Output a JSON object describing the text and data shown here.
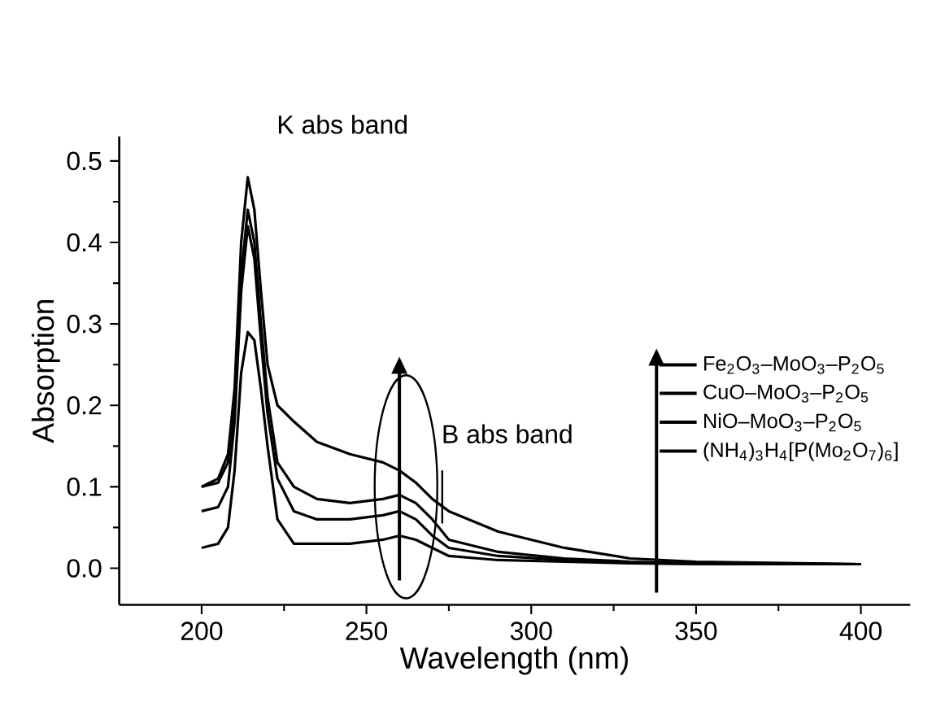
{
  "chart_data": {
    "type": "line",
    "xlabel": "Wavelength (nm)",
    "ylabel": "Absorption",
    "xlim": [
      175,
      415
    ],
    "ylim": [
      -0.045,
      0.53
    ],
    "xticks": [
      200,
      250,
      300,
      350,
      400
    ],
    "yticks": [
      {
        "value": 0,
        "label": "0.0"
      },
      {
        "value": 0.1,
        "label": "0.1"
      },
      {
        "value": 0.2,
        "label": "0.2"
      },
      {
        "value": 0.3,
        "label": "0.3"
      },
      {
        "value": 0.4,
        "label": "0.4"
      },
      {
        "value": 0.5,
        "label": "0.5"
      }
    ],
    "legend": "right",
    "grid": false,
    "marker": "none",
    "line_style": "solid",
    "annotations": [
      "K abs band",
      "B abs band"
    ],
    "x": [
      200,
      205,
      208,
      210,
      212,
      214,
      216,
      218,
      220,
      223,
      228,
      235,
      245,
      255,
      260,
      265,
      270,
      275,
      290,
      310,
      330,
      350,
      400
    ],
    "series": [
      {
        "name": "Fe$_{2}$O$_{3}$–MoO$_{3}$–P$_{2}$O$_{5}$",
        "color": "#000000",
        "values": [
          0.1,
          0.11,
          0.14,
          0.22,
          0.4,
          0.48,
          0.44,
          0.34,
          0.25,
          0.2,
          0.18,
          0.155,
          0.14,
          0.13,
          0.12,
          0.105,
          0.085,
          0.07,
          0.045,
          0.025,
          0.012,
          0.008,
          0.005
        ]
      },
      {
        "name": "CuO–MoO$_{3}$–P$_{2}$O$_{5}$",
        "color": "#000000",
        "values": [
          0.1,
          0.105,
          0.13,
          0.2,
          0.36,
          0.44,
          0.4,
          0.3,
          0.21,
          0.13,
          0.1,
          0.085,
          0.08,
          0.085,
          0.09,
          0.08,
          0.06,
          0.035,
          0.02,
          0.012,
          0.008,
          0.006,
          0.005
        ]
      },
      {
        "name": "NiO–MoO$_{3}$–P$_{2}$O$_{5}$",
        "color": "#000000",
        "values": [
          0.07,
          0.075,
          0.1,
          0.18,
          0.34,
          0.42,
          0.38,
          0.28,
          0.19,
          0.11,
          0.07,
          0.06,
          0.06,
          0.065,
          0.07,
          0.06,
          0.04,
          0.025,
          0.015,
          0.01,
          0.007,
          0.006,
          0.005
        ]
      },
      {
        "name": "(NH$_{4}$)$_{3}$H$_{4}$[P(Mo$_{2}$O$_{7}$)$_{6}$]",
        "color": "#000000",
        "values": [
          0.025,
          0.03,
          0.05,
          0.12,
          0.24,
          0.29,
          0.28,
          0.22,
          0.15,
          0.06,
          0.03,
          0.03,
          0.03,
          0.035,
          0.04,
          0.035,
          0.025,
          0.015,
          0.01,
          0.008,
          0.006,
          0.005,
          0.005
        ]
      }
    ]
  }
}
